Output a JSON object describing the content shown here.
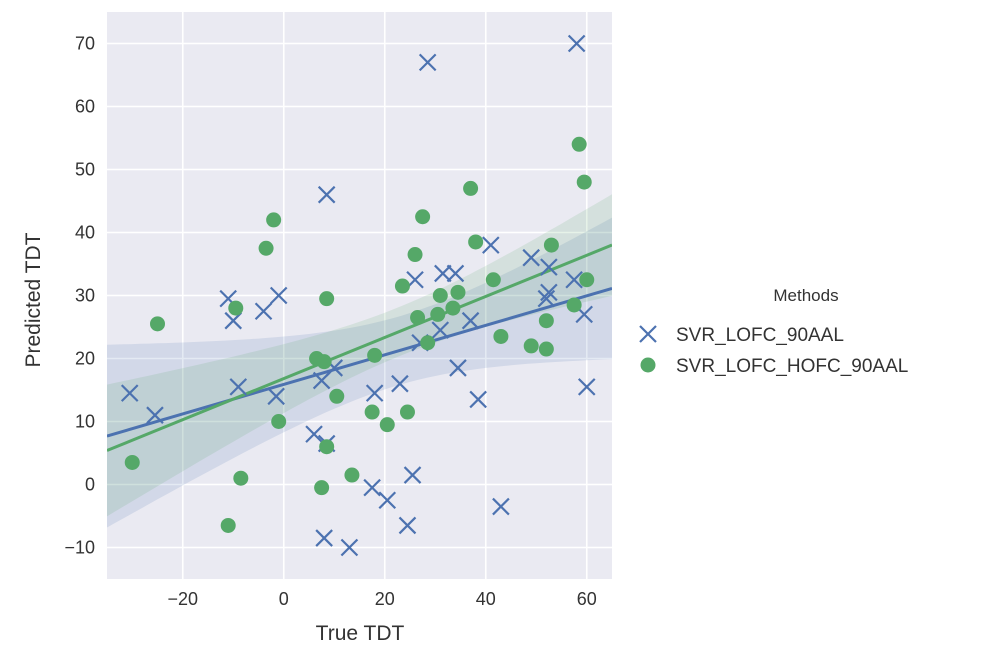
{
  "chart_data": {
    "type": "scatter",
    "title": "",
    "xlabel": "True TDT",
    "ylabel": "Predicted TDT",
    "xlim": [
      -35,
      65
    ],
    "ylim": [
      -15,
      75
    ],
    "xticks": [
      -20,
      0,
      20,
      40,
      60
    ],
    "yticks": [
      -10,
      0,
      10,
      20,
      30,
      40,
      50,
      60,
      70
    ],
    "grid": true,
    "background": "#eaeaf2",
    "legend": {
      "title": "Methods",
      "placement": "right"
    },
    "series": [
      {
        "name": "SVR_LOFC_90AAL",
        "marker": "x",
        "color": "#4c72b0",
        "points": [
          [
            -30.5,
            14.5
          ],
          [
            -25.5,
            11
          ],
          [
            -11,
            29.5
          ],
          [
            -10,
            26
          ],
          [
            -9,
            15.5
          ],
          [
            -4,
            27.5
          ],
          [
            -1.5,
            14
          ],
          [
            -1,
            30
          ],
          [
            6,
            8
          ],
          [
            7.5,
            16.5
          ],
          [
            8,
            -8.5
          ],
          [
            8.5,
            6.5
          ],
          [
            8.5,
            46
          ],
          [
            10,
            18.5
          ],
          [
            13,
            -10
          ],
          [
            17.5,
            -0.5
          ],
          [
            18,
            14.5
          ],
          [
            20.5,
            -2.5
          ],
          [
            23,
            16
          ],
          [
            24.5,
            -6.5
          ],
          [
            25.5,
            1.5
          ],
          [
            26,
            32.5
          ],
          [
            27,
            22.5
          ],
          [
            28.5,
            67
          ],
          [
            31,
            24.5
          ],
          [
            31.5,
            33.5
          ],
          [
            34,
            33.5
          ],
          [
            34.5,
            18.5
          ],
          [
            37,
            26
          ],
          [
            38.5,
            13.5
          ],
          [
            41,
            38
          ],
          [
            43,
            -3.5
          ],
          [
            49,
            36
          ],
          [
            52,
            29.5
          ],
          [
            52.5,
            30.5
          ],
          [
            52.5,
            34.5
          ],
          [
            57.5,
            32.5
          ],
          [
            58,
            70
          ],
          [
            59.5,
            27
          ],
          [
            60,
            15.5
          ]
        ]
      },
      {
        "name": "SVR_LOFC_HOFC_90AAL",
        "marker": "o",
        "color": "#55a868",
        "points": [
          [
            -30,
            3.5
          ],
          [
            -25,
            25.5
          ],
          [
            -11,
            -6.5
          ],
          [
            -9.5,
            28
          ],
          [
            -8.5,
            1
          ],
          [
            -3.5,
            37.5
          ],
          [
            -2,
            42
          ],
          [
            -1,
            10
          ],
          [
            6.5,
            20
          ],
          [
            7.5,
            -0.5
          ],
          [
            8,
            19.5
          ],
          [
            8.5,
            6
          ],
          [
            8.5,
            29.5
          ],
          [
            10.5,
            14
          ],
          [
            13.5,
            1.5
          ],
          [
            17.5,
            11.5
          ],
          [
            18,
            20.5
          ],
          [
            20.5,
            9.5
          ],
          [
            23.5,
            31.5
          ],
          [
            24.5,
            11.5
          ],
          [
            26,
            36.5
          ],
          [
            26.5,
            26.5
          ],
          [
            27.5,
            42.5
          ],
          [
            28.5,
            22.5
          ],
          [
            30.5,
            27
          ],
          [
            31,
            30
          ],
          [
            33.5,
            28
          ],
          [
            34.5,
            30.5
          ],
          [
            37,
            47
          ],
          [
            38,
            38.5
          ],
          [
            41.5,
            32.5
          ],
          [
            43,
            23.5
          ],
          [
            49,
            22
          ],
          [
            52,
            21.5
          ],
          [
            52,
            26
          ],
          [
            53,
            38
          ],
          [
            57.5,
            28.5
          ],
          [
            58.5,
            54
          ],
          [
            59.5,
            48
          ],
          [
            60,
            32.5
          ]
        ]
      }
    ]
  }
}
